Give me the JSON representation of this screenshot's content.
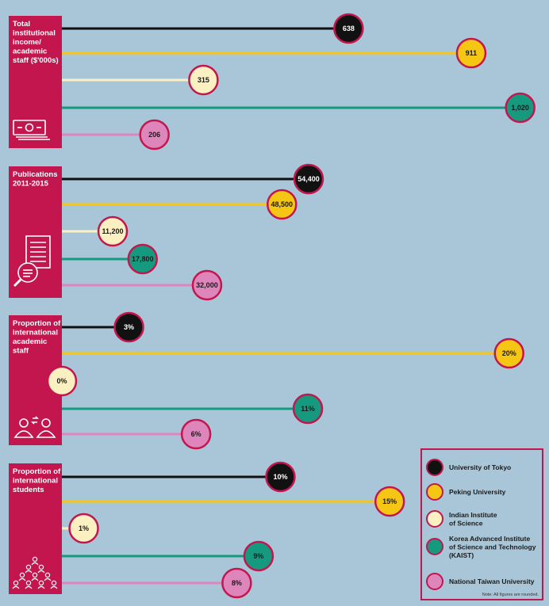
{
  "colors": {
    "background": "#a9c6d8",
    "panel": "#c4164e",
    "bubble_stroke": "#c4164e"
  },
  "series": [
    {
      "name": "University of Tokyo",
      "color": "#111111",
      "text_color": "#ffffff"
    },
    {
      "name": "Peking University",
      "color": "#f6c615",
      "text_color": "#1a1a1a"
    },
    {
      "name": "Indian Institute of Science",
      "color": "#fbf0c2",
      "text_color": "#1a1a1a"
    },
    {
      "name": "Korea Advanced Institute of Science and Technology (KAIST)",
      "color": "#159a80",
      "text_color": "#1a1a1a"
    },
    {
      "name": "National Taiwan University",
      "color": "#de86bb",
      "text_color": "#1a1a1a"
    }
  ],
  "legend": {
    "items": [
      [
        "University of Tokyo"
      ],
      [
        "Peking University"
      ],
      [
        "Indian Institute",
        "of Science"
      ],
      [
        "Korea Advanced Institute",
        "of Science and Technology",
        "(KAIST)"
      ],
      [
        "National Taiwan University"
      ]
    ],
    "note": "Note: All figures are rounded."
  },
  "chart_data": [
    {
      "type": "bar",
      "title": [
        "Total",
        "institutional",
        "income/",
        "academic",
        "staff ($'000s)"
      ],
      "icon": "money-icon",
      "values": [
        638,
        911,
        315,
        1020,
        206
      ],
      "labels": [
        "638",
        "911",
        "315",
        "1,020",
        "206"
      ],
      "xlim": [
        0,
        1070
      ]
    },
    {
      "type": "bar",
      "title": [
        "Publications",
        "2011-2015"
      ],
      "icon": "document-magnifier-icon",
      "values": [
        54400,
        48500,
        11200,
        17800,
        32000
      ],
      "labels": [
        "54,400",
        "48,500",
        "11,200",
        "17,800",
        "32,000"
      ],
      "xlim": [
        0,
        106000
      ]
    },
    {
      "type": "bar",
      "title": [
        "Proportion of",
        "international",
        "academic",
        "staff"
      ],
      "icon": "people-exchange-icon",
      "values": [
        3,
        20,
        0,
        11,
        6
      ],
      "labels": [
        "3%",
        "20%",
        "0%",
        "11%",
        "6%"
      ],
      "xlim": [
        0,
        21.5
      ]
    },
    {
      "type": "bar",
      "title": [
        "Proportion of",
        "international",
        "students"
      ],
      "icon": "audience-icon",
      "values": [
        10,
        15,
        1,
        9,
        8
      ],
      "labels": [
        "10%",
        "15%",
        "1%",
        "9%",
        "8%"
      ],
      "xlim": [
        0,
        22
      ]
    }
  ]
}
